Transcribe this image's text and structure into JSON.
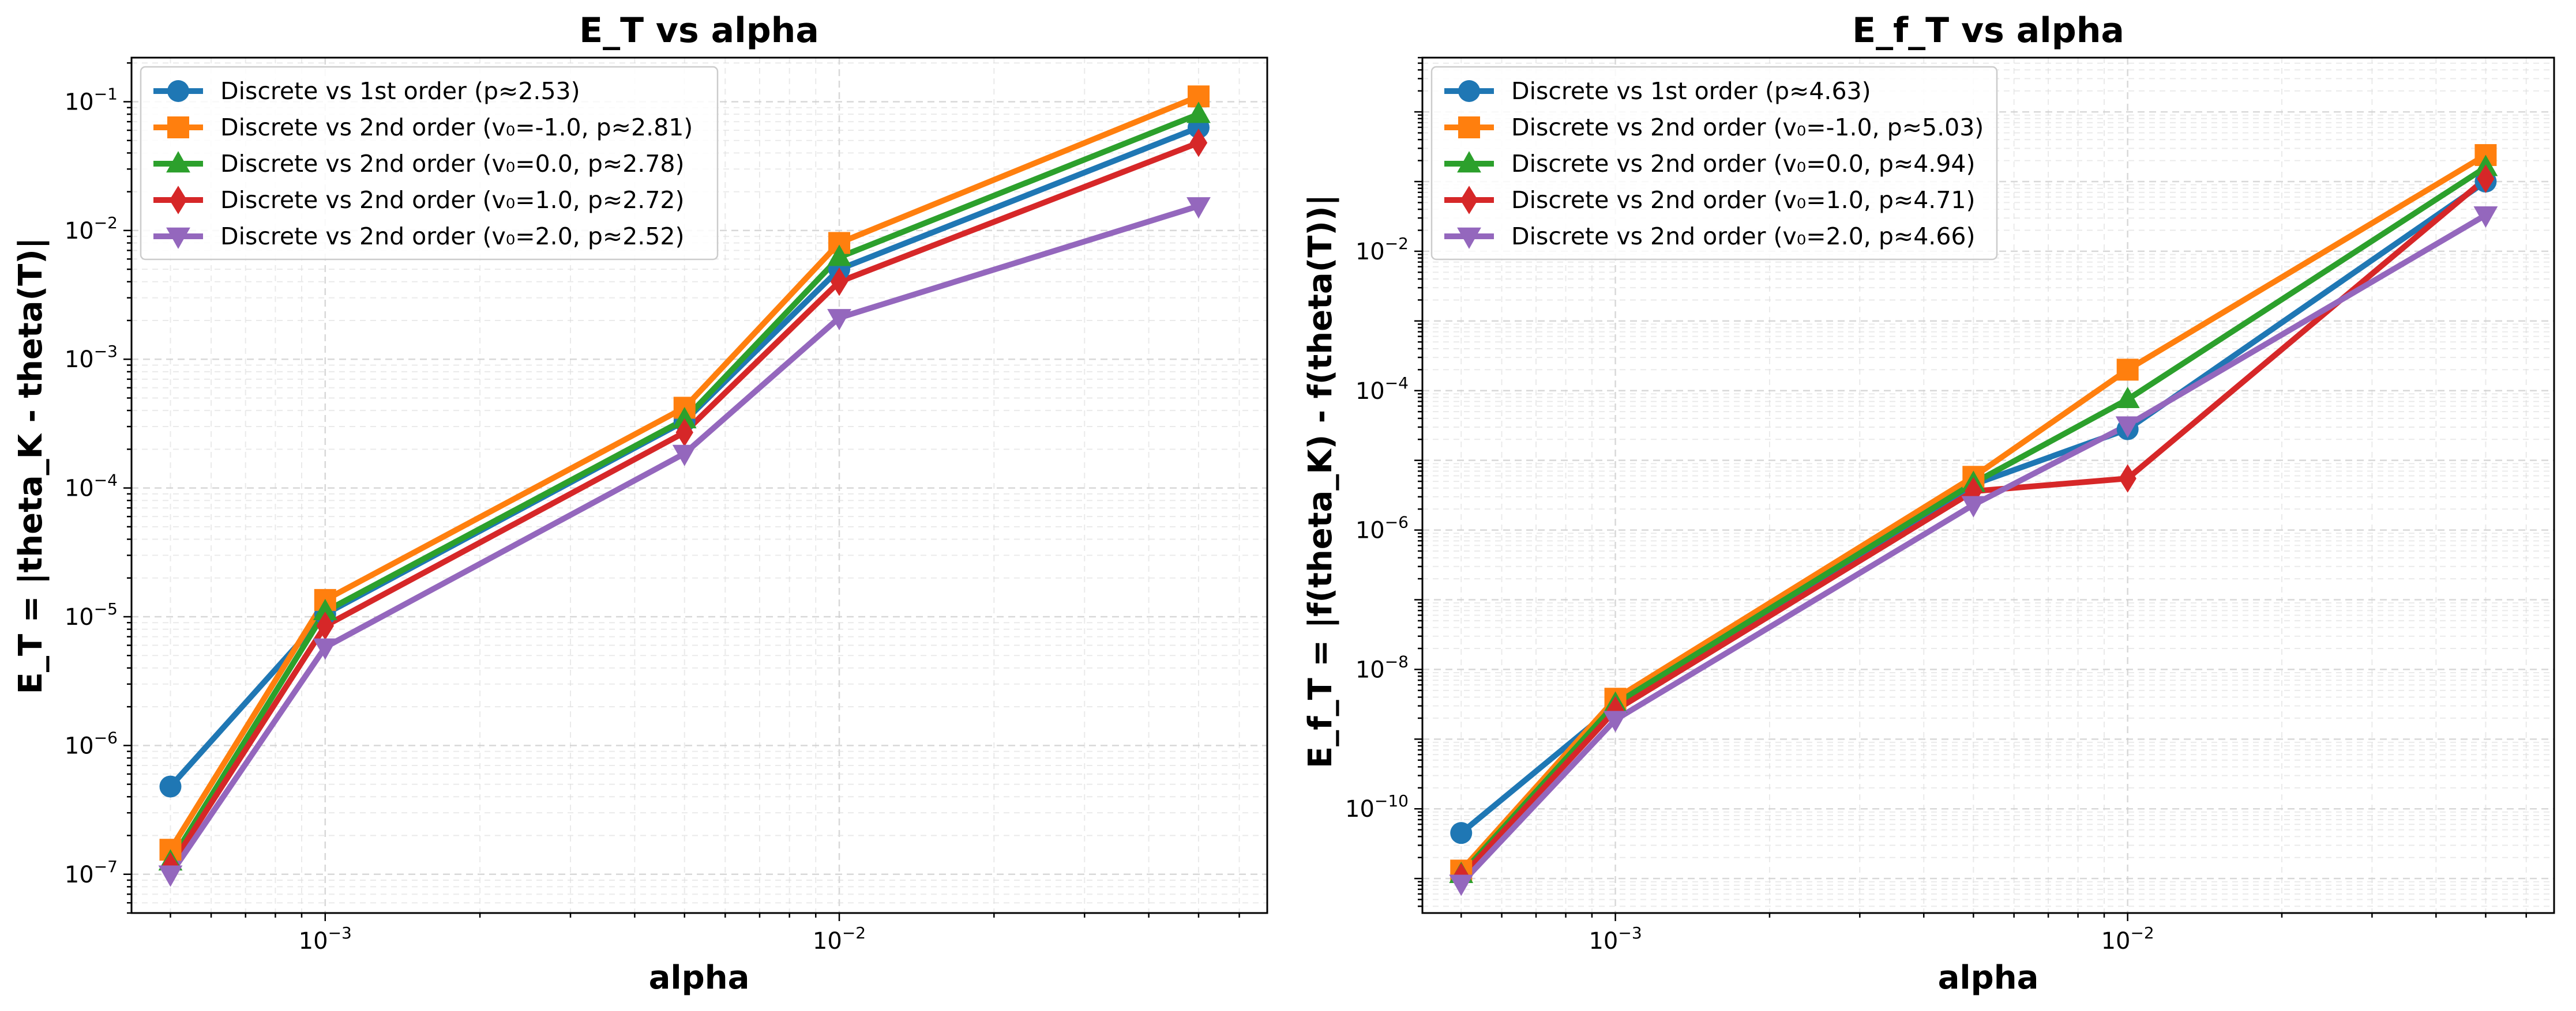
{
  "figure": {
    "colors": {
      "first_order": "#1f77b4",
      "v0_neg1": "#ff7f0e",
      "v0_0": "#2ca02c",
      "v0_1": "#d62728",
      "v0_2": "#9467bd"
    }
  },
  "chart_data": [
    {
      "type": "line",
      "title": "E_T vs alpha",
      "xlabel": "alpha",
      "ylabel": "E_T = |theta_K - theta(T)|",
      "xscale": "log",
      "yscale": "log",
      "xlim": [
        0.00042,
        0.068
      ],
      "ylim": [
        5e-08,
        0.22
      ],
      "grid": true,
      "legend_position": "top-left",
      "x": [
        0.0005,
        0.001,
        0.005,
        0.01,
        0.05
      ],
      "x_ticks": [
        {
          "value": 0.001,
          "base": "10",
          "exp": "−3"
        },
        {
          "value": 0.01,
          "base": "10",
          "exp": "−2"
        }
      ],
      "y_ticks": [
        {
          "value": 1e-07,
          "base": "10",
          "exp": "−7"
        },
        {
          "value": 1e-06,
          "base": "10",
          "exp": "−6"
        },
        {
          "value": 1e-05,
          "base": "10",
          "exp": "−5"
        },
        {
          "value": 0.0001,
          "base": "10",
          "exp": "−4"
        },
        {
          "value": 0.001,
          "base": "10",
          "exp": "−3"
        },
        {
          "value": 0.01,
          "base": "10",
          "exp": "−2"
        },
        {
          "value": 0.1,
          "base": "10",
          "exp": "−1"
        }
      ],
      "series": [
        {
          "name": "Discrete vs 1st order (p≈2.53)",
          "color": "#1f77b4",
          "marker": "circle",
          "values": [
            4.8e-07,
            1.05e-05,
            0.00033,
            0.005,
            0.063
          ]
        },
        {
          "name": "Discrete vs 2nd order (v₀=-1.0, p≈2.81)",
          "color": "#ff7f0e",
          "marker": "square",
          "values": [
            1.55e-07,
            1.35e-05,
            0.00042,
            0.008,
            0.11
          ]
        },
        {
          "name": "Discrete vs 2nd order (v₀=0.0, p≈2.78)",
          "color": "#2ca02c",
          "marker": "triangle-up",
          "values": [
            1.25e-07,
            1.1e-05,
            0.00034,
            0.0062,
            0.08
          ]
        },
        {
          "name": "Discrete vs 2nd order (v₀=1.0, p≈2.72)",
          "color": "#d62728",
          "marker": "diamond",
          "values": [
            1.15e-07,
            8.5e-06,
            0.00027,
            0.004,
            0.048
          ]
        },
        {
          "name": "Discrete vs 2nd order (v₀=2.0, p≈2.52)",
          "color": "#9467bd",
          "marker": "triangle-down",
          "values": [
            1e-07,
            5.8e-06,
            0.000185,
            0.0021,
            0.0155
          ]
        }
      ]
    },
    {
      "type": "line",
      "title": "E_f_T vs alpha",
      "xlabel": "alpha",
      "ylabel": "E_f_T = |f(theta_K) - f(theta(T))|",
      "xscale": "log",
      "yscale": "log",
      "xlim": [
        0.00042,
        0.068
      ],
      "ylim": [
        3.2e-12,
        6.0
      ],
      "grid": true,
      "legend_position": "top-left",
      "x": [
        0.0005,
        0.001,
        0.005,
        0.01,
        0.05
      ],
      "x_ticks": [
        {
          "value": 0.001,
          "base": "10",
          "exp": "−3"
        },
        {
          "value": 0.01,
          "base": "10",
          "exp": "−2"
        }
      ],
      "y_ticks": [
        {
          "value": 1e-10,
          "base": "10",
          "exp": "−10"
        },
        {
          "value": 1e-08,
          "base": "10",
          "exp": "−8"
        },
        {
          "value": 1e-06,
          "base": "10",
          "exp": "−6"
        },
        {
          "value": 0.0001,
          "base": "10",
          "exp": "−4"
        },
        {
          "value": 0.01,
          "base": "10",
          "exp": "−2"
        }
      ],
      "series": [
        {
          "name": "Discrete vs 1st order (p≈4.63)",
          "color": "#1f77b4",
          "marker": "circle",
          "values": [
            4.5e-11,
            3e-09,
            4.5e-06,
            2.8e-05,
            0.1
          ]
        },
        {
          "name": "Discrete vs 2nd order (v₀=-1.0, p≈5.03)",
          "color": "#ff7f0e",
          "marker": "square",
          "values": [
            1.3e-11,
            3.8e-09,
            5.8e-06,
            0.0002,
            0.24
          ]
        },
        {
          "name": "Discrete vs 2nd order (v₀=0.0, p≈4.94)",
          "color": "#2ca02c",
          "marker": "triangle-up",
          "values": [
            1.15e-11,
            3.2e-09,
            4.7e-06,
            7.5e-05,
            0.16
          ]
        },
        {
          "name": "Discrete vs 2nd order (v₀=1.0, p≈4.71)",
          "color": "#d62728",
          "marker": "diamond",
          "values": [
            1.05e-11,
            2.6e-09,
            3.6e-06,
            5.5e-06,
            0.11
          ]
        },
        {
          "name": "Discrete vs 2nd order (v₀=2.0, p≈4.66)",
          "color": "#9467bd",
          "marker": "triangle-down",
          "values": [
            8.5e-12,
            1.9e-09,
            2.3e-06,
            3.2e-05,
            0.033
          ]
        }
      ]
    }
  ]
}
